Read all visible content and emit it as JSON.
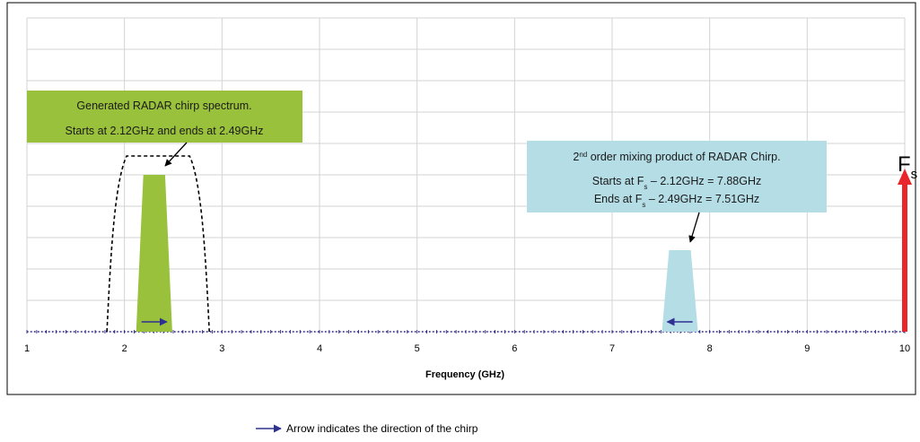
{
  "chart_data": {
    "type": "area",
    "xlabel": "Frequency (GHz)",
    "xlim": [
      1,
      10
    ],
    "x_ticks": [
      "1",
      "2",
      "3",
      "4",
      "5",
      "6",
      "7",
      "8",
      "9",
      "10"
    ],
    "grid": true,
    "series": [
      {
        "shape": "trapezoid",
        "color": "#99c13b",
        "x_start": 2.12,
        "x_end": 2.49,
        "relative_height": 0.5,
        "chirp_direction": "up"
      },
      {
        "shape": "trapezoid",
        "color": "#b5dde6",
        "x_start": 7.51,
        "x_end": 7.88,
        "relative_height": 0.26,
        "chirp_direction": "down"
      },
      {
        "shape": "arrow",
        "color": "#e8262b",
        "x": 10,
        "relative_height": 0.52,
        "label": "F",
        "label_sub": "s"
      }
    ],
    "filter_outline": {
      "style": "dashed",
      "x_start": 1.82,
      "x_end": 2.87,
      "relative_height": 0.56
    },
    "annotations": [
      {
        "color": "#99c13b",
        "lines": [
          "Generated RADAR chirp spectrum.",
          "Starts at 2.12GHz and ends at 2.49GHz"
        ]
      },
      {
        "color": "#b5dde6",
        "line1": {
          "sup": "nd",
          "pre": "2",
          "post": " order mixing product of RADAR Chirp."
        },
        "line2": {
          "pre": "Starts at F",
          "sub": "s",
          "post": " – 2.12GHz = 7.88GHz"
        },
        "line3": {
          "pre": "Ends at F",
          "sub": "s",
          "post": " – 2.49GHz = 7.51GHz"
        }
      }
    ],
    "legend": {
      "text": "Arrow indicates the direction of the chirp",
      "arrow_color": "#2e3192"
    },
    "colors": {
      "axis_dots": "#1f1f7a",
      "chirp_arrow": "#2e3192",
      "border": "#000000",
      "grid": "#d3d3d3"
    }
  }
}
